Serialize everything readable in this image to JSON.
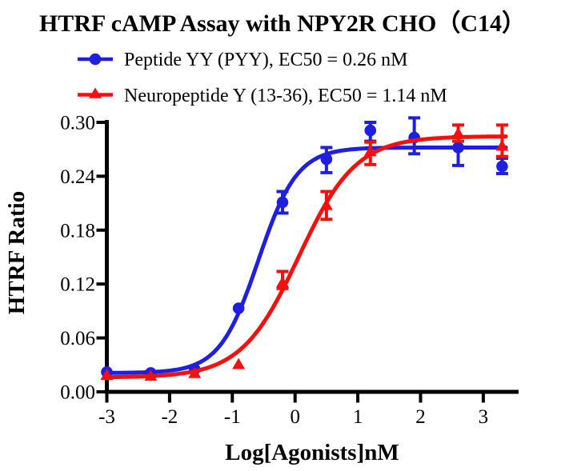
{
  "figure": {
    "background": "#ffffff",
    "text_color": "#000000"
  },
  "legend": {
    "entries": [
      {
        "text": "Peptide YY (PYY),  EC50 = 0.26 nM",
        "marker": "circle-on-line",
        "color": "#1f1fdf"
      },
      {
        "text": "Neuropeptide Y (13-36),  EC50 = 1.14 nM",
        "marker": "triangle-on-line",
        "color": "#f5100d"
      }
    ]
  },
  "chart_data": {
    "type": "scatter",
    "title": "HTRF cAMP Assay with NPY2R CHO（C14）",
    "xlabel": "Log[Agonists]nM",
    "ylabel": "HTRF Ratio",
    "xlim": [
      -3,
      3.55
    ],
    "ylim": [
      0,
      0.3
    ],
    "grid": false,
    "legend_position": "above-plot-left",
    "axis_color": "#000000",
    "curve_x_range": [
      -3.0,
      3.37
    ],
    "xticks": {
      "values": [
        -3,
        -2,
        -1,
        0,
        1,
        2,
        3
      ],
      "labels": [
        "-3",
        "-2",
        "-1",
        "0",
        "1",
        "2",
        "3"
      ]
    },
    "yticks": {
      "values": [
        0,
        0.06,
        0.12,
        0.18,
        0.24,
        0.3
      ],
      "labels": [
        "0.00",
        "0.06",
        "0.12",
        "0.18",
        "0.24",
        "0.30"
      ]
    },
    "series": [
      {
        "name": "Peptide YY (PYY)",
        "ec50_nM": 0.26,
        "color": "#1f1fdf",
        "marker": "circle",
        "x": [
          -3.0,
          -2.3,
          -1.6,
          -0.9,
          -0.2,
          0.5,
          1.2,
          1.9,
          2.6,
          3.3
        ],
        "y": [
          0.022,
          0.021,
          0.025,
          0.093,
          0.211,
          0.259,
          0.291,
          0.283,
          0.272,
          0.251
        ],
        "err_up": [
          0,
          0,
          0,
          0,
          0.012,
          0.013,
          0.009,
          0.022,
          0.012,
          0.009
        ],
        "err_dn": [
          0,
          0,
          0,
          0,
          0.012,
          0.015,
          0.012,
          0.018,
          0.02,
          0.008
        ],
        "fit": {
          "bottom": 0.021,
          "top": 0.272,
          "log_ec50": -0.585,
          "hill": 1.4
        }
      },
      {
        "name": "Neuropeptide Y (13-36)",
        "ec50_nM": 1.14,
        "color": "#f5100d",
        "marker": "triangle",
        "x": [
          -3.0,
          -2.3,
          -1.6,
          -0.9,
          -0.2,
          0.5,
          1.2,
          1.9,
          2.6,
          3.3
        ],
        "y": [
          0.019,
          0.018,
          0.021,
          0.031,
          0.122,
          0.208,
          0.268,
          null,
          0.288,
          0.274
        ],
        "err_up": [
          0,
          0,
          0,
          0,
          0.012,
          0.015,
          0.01,
          0,
          0.009,
          0.023
        ],
        "err_dn": [
          0,
          0,
          0,
          0,
          0.007,
          0.016,
          0.015,
          0,
          0.009,
          0.012
        ],
        "fit": {
          "bottom": 0.016,
          "top": 0.2845,
          "log_ec50": 0.057,
          "hill": 0.95
        }
      }
    ]
  }
}
